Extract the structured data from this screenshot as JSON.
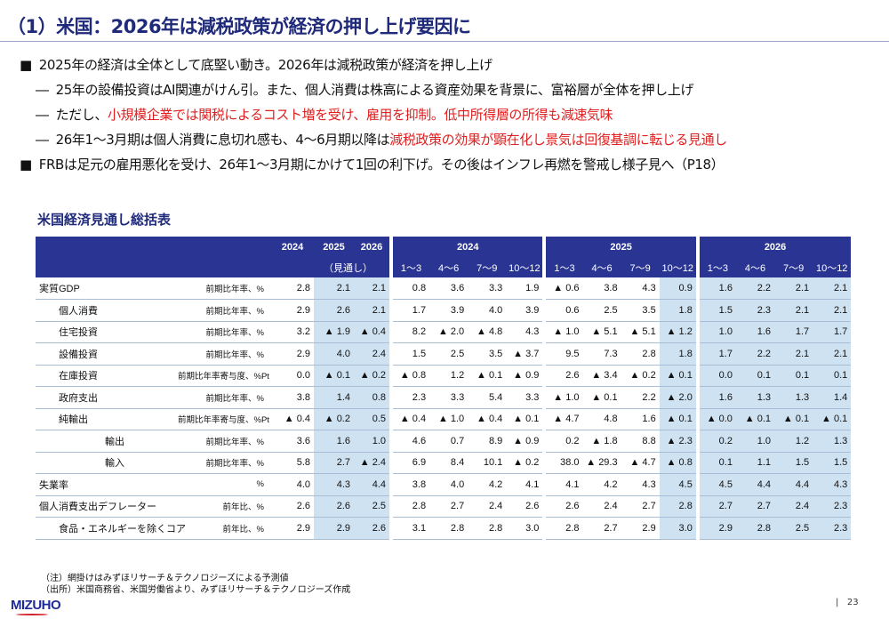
{
  "title": "（1）米国：2026年は減税政策が経済の押し上げ要因に",
  "bullets": [
    {
      "marker": "■",
      "parts": [
        {
          "t": "2025年の経済は全体として底堅い動き。2026年は減税政策が経済を押し上げ",
          "red": false
        }
      ]
    },
    {
      "marker": "―",
      "parts": [
        {
          "t": "25年の設備投資はAI関連がけん引。また、個人消費は株高による資産効果を背景に、富裕層が全体を押し上げ",
          "red": false
        }
      ]
    },
    {
      "marker": "―",
      "parts": [
        {
          "t": "ただし、",
          "red": false
        },
        {
          "t": "小規模企業では関税によるコスト増を受け、雇用を抑制。低中所得層の所得も減速気味",
          "red": true
        }
      ]
    },
    {
      "marker": "―",
      "parts": [
        {
          "t": "26年1～3月期は個人消費に息切れ感も、4～6月期以降は",
          "red": false
        },
        {
          "t": "減税政策の効果が顕在化し景気は回復基調に転じる見通し",
          "red": true
        }
      ]
    },
    {
      "marker": "■",
      "parts": [
        {
          "t": "FRBは足元の雇用悪化を受け、26年1～3月期にかけて1回の利下げ。その後はインフレ再燃を警戒し様子見へ（P18）",
          "red": false
        }
      ]
    }
  ],
  "table": {
    "title": "米国経済見通し総括表",
    "annual_headers": [
      "2024",
      "2025",
      "2026"
    ],
    "forecast_label": "（見通し）",
    "year_groups": [
      "2024",
      "2025",
      "2026"
    ],
    "quarters": [
      "1～3",
      "4～6",
      "7～9",
      "10～12"
    ],
    "rows": [
      {
        "label": "実質GDP",
        "indent": 0,
        "unit": "前期比年率、%",
        "values": [
          "2.8",
          "2.1",
          "2.1",
          "0.8",
          "3.6",
          "3.3",
          "1.9",
          "▲ 0.6",
          "3.8",
          "4.3",
          "0.9",
          "1.6",
          "2.2",
          "2.1",
          "2.1"
        ]
      },
      {
        "label": "個人消費",
        "indent": 1,
        "unit": "前期比年率、%",
        "values": [
          "2.9",
          "2.6",
          "2.1",
          "1.7",
          "3.9",
          "4.0",
          "3.9",
          "0.6",
          "2.5",
          "3.5",
          "1.8",
          "1.5",
          "2.3",
          "2.1",
          "2.1"
        ]
      },
      {
        "label": "住宅投資",
        "indent": 1,
        "unit": "前期比年率、%",
        "values": [
          "3.2",
          "▲ 1.9",
          "▲ 0.4",
          "8.2",
          "▲ 2.0",
          "▲ 4.8",
          "4.3",
          "▲ 1.0",
          "▲ 5.1",
          "▲ 5.1",
          "▲ 1.2",
          "1.0",
          "1.6",
          "1.7",
          "1.7"
        ]
      },
      {
        "label": "設備投資",
        "indent": 1,
        "unit": "前期比年率、%",
        "values": [
          "2.9",
          "4.0",
          "2.4",
          "1.5",
          "2.5",
          "3.5",
          "▲ 3.7",
          "9.5",
          "7.3",
          "2.8",
          "1.8",
          "1.7",
          "2.2",
          "2.1",
          "2.1"
        ]
      },
      {
        "label": "在庫投資",
        "indent": 1,
        "unit": "前期比年率寄与度、%Pt",
        "values": [
          "0.0",
          "▲ 0.1",
          "▲ 0.2",
          "▲ 0.8",
          "1.2",
          "▲ 0.1",
          "▲ 0.9",
          "2.6",
          "▲ 3.4",
          "▲ 0.2",
          "▲ 0.1",
          "0.0",
          "0.1",
          "0.1",
          "0.1"
        ]
      },
      {
        "label": "政府支出",
        "indent": 1,
        "unit": "前期比年率、%",
        "values": [
          "3.8",
          "1.4",
          "0.8",
          "2.3",
          "3.3",
          "5.4",
          "3.3",
          "▲ 1.0",
          "▲ 0.1",
          "2.2",
          "▲ 2.0",
          "1.6",
          "1.3",
          "1.3",
          "1.4"
        ]
      },
      {
        "label": "純輸出",
        "indent": 1,
        "unit": "前期比年率寄与度、%Pt",
        "values": [
          "▲ 0.4",
          "▲ 0.2",
          "0.5",
          "▲ 0.4",
          "▲ 1.0",
          "▲ 0.4",
          "▲ 0.1",
          "▲ 4.7",
          "4.8",
          "1.6",
          "▲ 0.1",
          "▲ 0.0",
          "▲ 0.1",
          "▲ 0.1",
          "▲ 0.1"
        ]
      },
      {
        "label": "輸出",
        "indent": 2,
        "unit": "前期比年率、%",
        "values": [
          "3.6",
          "1.6",
          "1.0",
          "4.6",
          "0.7",
          "8.9",
          "▲ 0.9",
          "0.2",
          "▲ 1.8",
          "8.8",
          "▲ 2.3",
          "0.2",
          "1.0",
          "1.2",
          "1.3"
        ]
      },
      {
        "label": "輸入",
        "indent": 2,
        "unit": "前期比年率、%",
        "values": [
          "5.8",
          "2.7",
          "▲ 2.4",
          "6.9",
          "8.4",
          "10.1",
          "▲ 0.2",
          "38.0",
          "▲ 29.3",
          "▲ 4.7",
          "▲ 0.8",
          "0.1",
          "1.1",
          "1.5",
          "1.5"
        ]
      },
      {
        "label": "失業率",
        "indent": 0,
        "unit": "%",
        "values": [
          "4.0",
          "4.3",
          "4.4",
          "3.8",
          "4.0",
          "4.2",
          "4.1",
          "4.1",
          "4.2",
          "4.3",
          "4.5",
          "4.5",
          "4.4",
          "4.4",
          "4.3"
        ]
      },
      {
        "label": "個人消費支出デフレーター",
        "indent": 0,
        "unit": "前年比、%",
        "values": [
          "2.6",
          "2.6",
          "2.5",
          "2.8",
          "2.7",
          "2.4",
          "2.6",
          "2.6",
          "2.4",
          "2.7",
          "2.8",
          "2.7",
          "2.7",
          "2.4",
          "2.3"
        ]
      },
      {
        "label": "食品・エネルギーを除くコア",
        "indent": 1,
        "unit": "前年比、%",
        "values": [
          "2.9",
          "2.9",
          "2.6",
          "3.1",
          "2.8",
          "2.8",
          "3.0",
          "2.8",
          "2.7",
          "2.9",
          "3.0",
          "2.9",
          "2.8",
          "2.5",
          "2.3"
        ]
      }
    ]
  },
  "notes": [
    "（注）網掛けはみずほリサーチ＆テクノロジーズによる予測値",
    "（出所）米国商務省、米国労働省より、みずほリサーチ＆テクノロジーズ作成"
  ],
  "logo": "MIZUHO",
  "page_number": "23",
  "colors": {
    "header": "#2a3593",
    "shade": "#cfe2f1",
    "accent_red": "#e02020",
    "title": "#1f2a7a"
  }
}
